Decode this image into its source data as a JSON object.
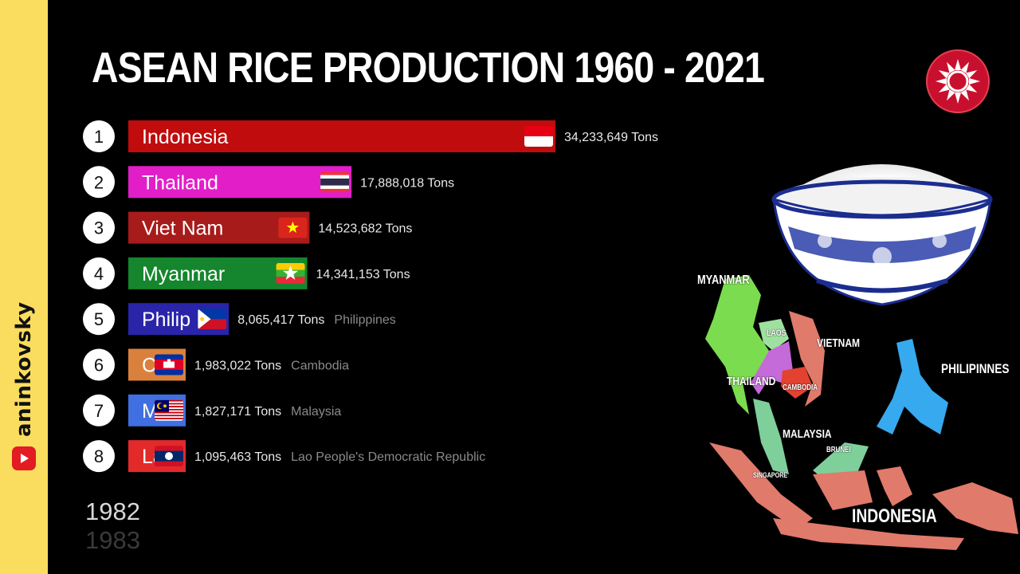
{
  "title": "ASEAN RICE PRODUCTION 1960 - 2021",
  "brand": {
    "name": "aninkovsky"
  },
  "year": {
    "current": "1982",
    "next": "1983"
  },
  "map_labels": {
    "myanmar": "MYANMAR",
    "laos": "LAOS",
    "vietnam": "VIETNAM",
    "thailand": "THAILAND",
    "cambodia": "CAMBODIA",
    "philippines": "PHILIPINNES",
    "malaysia": "MALAYSIA",
    "brunei": "BRUNEI",
    "singapore": "SINGAPORE",
    "indonesia": "INDONESIA"
  },
  "chart_data": {
    "type": "bar",
    "orientation": "horizontal",
    "unit": "Tons",
    "title": "ASEAN RICE PRODUCTION 1960 - 2021",
    "bars": [
      {
        "rank": "1",
        "name": "Indonesia",
        "value": 34233649,
        "value_label": "34,233,649 Tons",
        "caption": "",
        "color": "#c00c0c",
        "flag": "indonesia-flag"
      },
      {
        "rank": "2",
        "name": "Thailand",
        "value": 17888018,
        "value_label": "17,888,018 Tons",
        "caption": "",
        "color": "#e21ec9",
        "flag": "thailand-flag"
      },
      {
        "rank": "3",
        "name": "Viet Nam",
        "value": 14523682,
        "value_label": "14,523,682 Tons",
        "caption": "",
        "color": "#a81b1b",
        "flag": "vietnam-flag"
      },
      {
        "rank": "4",
        "name": "Myanmar",
        "value": 14341153,
        "value_label": "14,341,153 Tons",
        "caption": "",
        "color": "#15862e",
        "flag": "myanmar-flag"
      },
      {
        "rank": "5",
        "name": "Philip",
        "value": 8065417,
        "value_label": "8,065,417 Tons",
        "caption": "Philippines",
        "color": "#2a24a8",
        "flag": "philippines-flag"
      },
      {
        "rank": "6",
        "name": "Ca",
        "value": 1983022,
        "value_label": "1,983,022 Tons",
        "caption": "Cambodia",
        "color": "#d9813c",
        "flag": "cambodia-flag"
      },
      {
        "rank": "7",
        "name": "M",
        "value": 1827171,
        "value_label": "1,827,171 Tons",
        "caption": "Malaysia",
        "color": "#3f6fe0",
        "flag": "malaysia-flag"
      },
      {
        "rank": "8",
        "name": "La",
        "value": 1095463,
        "value_label": "1,095,463 Tons",
        "caption": "Lao People's Democratic Republic",
        "color": "#e32a2a",
        "flag": "laos-flag"
      }
    ]
  }
}
